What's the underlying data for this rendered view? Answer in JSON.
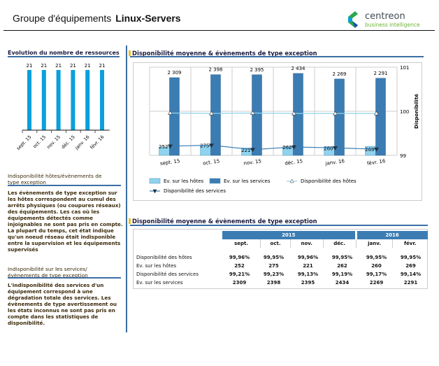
{
  "header": {
    "title_prefix": "Groupe d'équipements",
    "title_name": "Linux-Servers",
    "logo_brand": "centreon",
    "logo_tagline": "business intelligence"
  },
  "left": {
    "chart_title": "Evolution du nombre de ressources",
    "sec1_title": "Indisponibilité  hôtes/évènements de type exception",
    "sec1_text": "Les évènements de type exception sur les hôtes correspondent au cumul des arrêts physiques (ou coupures réseaux) des équipements. Les cas où les équipements détectés comme injoignables ne sont pas pris en compte. La plupart du temps, cet état indique qu'un noeud réseau était indisponible entre la supervision et les équipements supervisés",
    "sec2_title": "Indisponibilité sur les services/ évènements de type exception",
    "sec2_text": "L'indisponibilité des services d'un équipement correspond à une dégradation totale des services. Les évènements de type avertissement ou les états inconnus ne sont pas pris en compte dans les statistiques de disponibilité."
  },
  "right": {
    "chart_title": "Disponibilité moyenne & évènements de type exception",
    "table_title": "Disponibilité moyenne & évènements de type exception"
  },
  "chart_data": [
    {
      "type": "bar",
      "title": "Evolution du nombre de ressources",
      "categories": [
        "sept. 15",
        "oct. 15",
        "nov. 15",
        "déc. 15",
        "janv. 16",
        "févr. 16"
      ],
      "values": [
        21,
        21,
        21,
        21,
        21,
        21
      ],
      "color": "#0aa0dc"
    },
    {
      "type": "bar+line",
      "categories": [
        "sept. 15",
        "oct. 15",
        "nov. 15",
        "déc. 15",
        "janv. 16",
        "févr. 16"
      ],
      "series": [
        {
          "name": "Ev. sur les hôtes",
          "kind": "bar",
          "axis": "left",
          "values": [
            252,
            275,
            221,
            262,
            260,
            269
          ],
          "color": "#8fd3ee"
        },
        {
          "name": "Ev. sur les services",
          "kind": "bar",
          "axis": "left",
          "values": [
            2309,
            2398,
            2395,
            2434,
            2269,
            2291
          ],
          "color": "#3b7db3"
        },
        {
          "name": "Disponibilité des hôtes",
          "kind": "line",
          "axis": "right",
          "marker": "triangle-up",
          "values": [
            99.96,
            99.95,
            99.96,
            99.95,
            99.95,
            99.95
          ],
          "color": "#8fd3ee"
        },
        {
          "name": "Disponibilité des services",
          "kind": "line",
          "axis": "right",
          "marker": "triangle-down",
          "values": [
            99.21,
            99.23,
            99.13,
            99.19,
            99.17,
            99.14
          ],
          "color": "#3b7db3"
        }
      ],
      "data_labels_hosts": [
        "252",
        "275",
        "221",
        "262",
        "260",
        "269"
      ],
      "data_labels_services": [
        "2 309",
        "2 398",
        "2 395",
        "2 434",
        "2 269",
        "2 291"
      ],
      "y2label": "Disponibilité",
      "y2lim": [
        99,
        101
      ],
      "y2ticks": [
        "99",
        "100",
        "101"
      ],
      "ylim": [
        0,
        2620
      ],
      "grid": true,
      "legend": "bottom"
    }
  ],
  "table": {
    "years": [
      "2015",
      "2016"
    ],
    "months": [
      "sept.",
      "oct.",
      "nov.",
      "déc.",
      "janv.",
      "févr."
    ],
    "rows": [
      {
        "label": "Disponibilité des hôtes",
        "values": [
          "99,96%",
          "99,95%",
          "99,96%",
          "99,95%",
          "99,95%",
          "99,95%"
        ]
      },
      {
        "label": "Ev. sur les hôtes",
        "values": [
          "252",
          "275",
          "221",
          "262",
          "260",
          "269"
        ]
      },
      {
        "label": "Disponibilité des services",
        "values": [
          "99,21%",
          "99,23%",
          "99,13%",
          "99,19%",
          "99,17%",
          "99,14%"
        ]
      },
      {
        "label": "Ev. sur les services",
        "values": [
          "2309",
          "2398",
          "2395",
          "2434",
          "2269",
          "2291"
        ]
      }
    ]
  }
}
